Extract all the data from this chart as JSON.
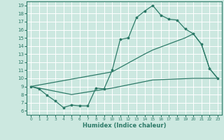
{
  "xlabel": "Humidex (Indice chaleur)",
  "bg_color": "#cce8e0",
  "line_color": "#2d7a68",
  "grid_color": "#ffffff",
  "xlim": [
    -0.5,
    23.5
  ],
  "ylim": [
    5.5,
    19.5
  ],
  "yticks": [
    6,
    7,
    8,
    9,
    10,
    11,
    12,
    13,
    14,
    15,
    16,
    17,
    18,
    19
  ],
  "xticks": [
    0,
    1,
    2,
    3,
    4,
    5,
    6,
    7,
    8,
    9,
    10,
    11,
    12,
    13,
    14,
    15,
    16,
    17,
    18,
    19,
    20,
    21,
    22,
    23
  ],
  "line1_x": [
    0,
    1,
    2,
    3,
    4,
    5,
    6,
    7,
    8,
    9,
    10,
    11,
    12,
    13,
    14,
    15,
    16,
    17,
    18,
    19,
    20,
    21,
    22,
    23
  ],
  "line1_y": [
    9.0,
    8.7,
    7.9,
    7.2,
    6.4,
    6.7,
    6.6,
    6.6,
    8.8,
    8.7,
    11.0,
    14.8,
    15.0,
    17.5,
    18.3,
    19.0,
    17.8,
    17.3,
    17.2,
    16.1,
    15.5,
    14.2,
    11.2,
    10.0
  ],
  "line2_x": [
    0,
    10,
    14,
    15,
    19,
    20,
    21,
    22,
    23
  ],
  "line2_y": [
    9.0,
    10.8,
    13.0,
    13.5,
    15.0,
    15.5,
    14.2,
    11.2,
    10.0
  ],
  "line3_x": [
    0,
    5,
    10,
    15,
    20,
    23
  ],
  "line3_y": [
    9.0,
    8.0,
    8.8,
    9.8,
    10.0,
    10.0
  ]
}
